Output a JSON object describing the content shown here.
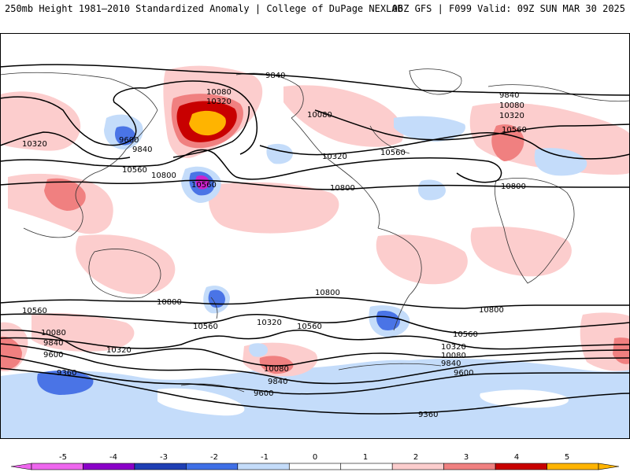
{
  "header": {
    "left_title": "250mb Height 1981–2010 Standardized Anomaly | College of DuPage NEXLAB",
    "right_title": "06Z GFS | F099 Valid: 09Z SUN MAR 30 2025"
  },
  "colorbar": {
    "ticks": [
      "-5",
      "-4",
      "-3",
      "-2",
      "-1",
      "0",
      "1",
      "2",
      "3",
      "4",
      "5"
    ],
    "colors": [
      "#ee66ee",
      "#8a00c8",
      "#1f3fb4",
      "#3f6fe6",
      "#c4dcfa",
      "#ffffff",
      "#ffffff",
      "#fccdcd",
      "#f08080",
      "#c80000",
      "#ffb400"
    ]
  },
  "contours": {
    "values": [
      "9360",
      "9600",
      "9840",
      "10080",
      "10320",
      "10560",
      "10800"
    ]
  },
  "colors": {
    "neg_light": "#c4dcfa",
    "neg_mid": "#4a74e6",
    "neg_strong": "#1f3fb4",
    "neg_extreme": "#cc22cc",
    "pos_light": "#fccdcd",
    "pos_mid": "#f08080",
    "pos_strong": "#c80000",
    "pos_extreme": "#ffb400",
    "contour": "#000000",
    "coast": "#333333"
  },
  "labels": [
    {
      "id": "h9840-a",
      "text": "9840"
    },
    {
      "id": "h10080-a",
      "text": "10080"
    },
    {
      "id": "h10320-a",
      "text": "10320"
    },
    {
      "id": "h9600-a",
      "text": "9600"
    },
    {
      "id": "h9840-b",
      "text": "9840"
    },
    {
      "id": "h10320-b",
      "text": "10320"
    },
    {
      "id": "h10560-a",
      "text": "10560"
    },
    {
      "id": "h10800-a",
      "text": "10800"
    },
    {
      "id": "h10560-b",
      "text": "10560"
    },
    {
      "id": "h10080-b",
      "text": "10080"
    },
    {
      "id": "h10320-c",
      "text": "10320"
    },
    {
      "id": "h10560-c",
      "text": "10560"
    },
    {
      "id": "h10800-b",
      "text": "10800"
    },
    {
      "id": "h9840-c",
      "text": "9840"
    },
    {
      "id": "h10080-c",
      "text": "10080"
    },
    {
      "id": "h10320-d",
      "text": "10320"
    },
    {
      "id": "h10560-d",
      "text": "10560"
    },
    {
      "id": "h10800-c",
      "text": "10800"
    },
    {
      "id": "h10800-d",
      "text": "10800"
    },
    {
      "id": "h10800-e",
      "text": "10800"
    },
    {
      "id": "h10800-f",
      "text": "10800"
    },
    {
      "id": "h10560-e",
      "text": "10560"
    },
    {
      "id": "h10560-f",
      "text": "10560"
    },
    {
      "id": "h10080-d",
      "text": "10080"
    },
    {
      "id": "h10320-e",
      "text": "10320"
    },
    {
      "id": "h10560-g",
      "text": "10560"
    },
    {
      "id": "h9840-d",
      "text": "9840"
    },
    {
      "id": "h9600-b",
      "text": "9600"
    },
    {
      "id": "h9360-a",
      "text": "9360"
    },
    {
      "id": "h10320-f",
      "text": "10320"
    },
    {
      "id": "h10560-h",
      "text": "10560"
    },
    {
      "id": "h10080-e",
      "text": "10080"
    },
    {
      "id": "h9840-e",
      "text": "9840"
    },
    {
      "id": "h9600-c",
      "text": "9600"
    },
    {
      "id": "h10320-g",
      "text": "10320"
    },
    {
      "id": "h10080-f",
      "text": "10080"
    },
    {
      "id": "h9840-f",
      "text": "9840"
    },
    {
      "id": "h9600-d",
      "text": "9600"
    },
    {
      "id": "h9360-b",
      "text": "9360"
    }
  ]
}
